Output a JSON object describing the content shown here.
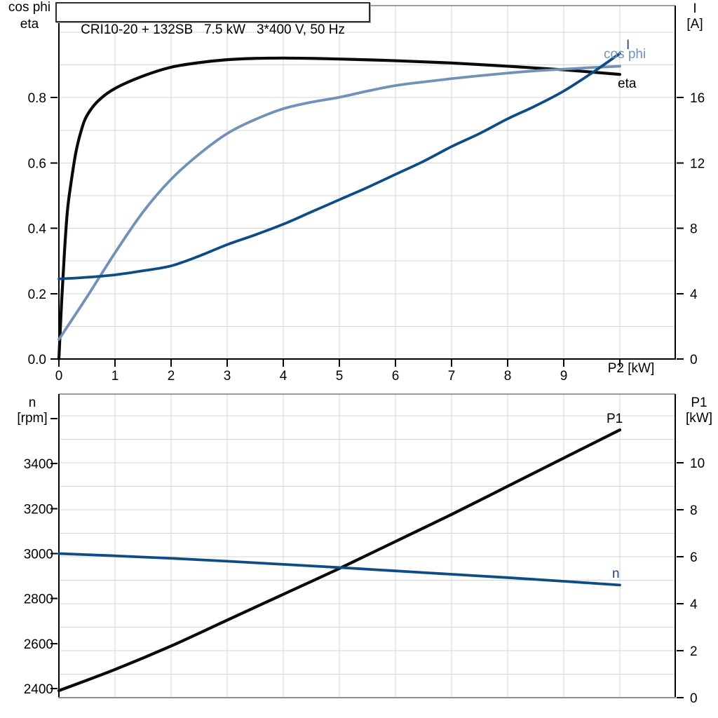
{
  "title_box": "CRI10-20 + 132SB   7.5 kW   3*400 V, 50 Hz",
  "colors": {
    "black": "#0a0a0a",
    "light_blue": "#7191b8",
    "dark_blue": "#0e4c85",
    "grid": "#d5d5d5",
    "axis": "#000000",
    "border_top": "#3c3c3c",
    "border_gray": "#8f8f8f"
  },
  "chart_data": [
    {
      "type": "line",
      "title": "CRI10-20 + 132SB  7.5 kW  3*400 V, 50 Hz",
      "x_label": "P2 [kW]",
      "x_range": [
        0,
        11
      ],
      "x_ticks": {
        "values": [
          0,
          1,
          2,
          3,
          4,
          5,
          6,
          7,
          8,
          9,
          10
        ],
        "labels": [
          "0",
          "1",
          "2",
          "3",
          "4",
          "5",
          "6",
          "7",
          "8",
          "9",
          ""
        ]
      },
      "x_gridlines": [
        1,
        2,
        3,
        4,
        5,
        6,
        7,
        8,
        9,
        10
      ],
      "left_axis_title": [
        "cos phi",
        "eta"
      ],
      "left_range": [
        0,
        1.082
      ],
      "left_ticks": {
        "values": [
          0.0,
          0.2,
          0.4,
          0.6,
          0.8
        ],
        "labels": [
          "0.0",
          "0.2",
          "0.4",
          "0.6",
          "0.8"
        ]
      },
      "right_axis_title": [
        "I",
        "[A]"
      ],
      "right_range": [
        0,
        21.6
      ],
      "right_ticks": {
        "values": [
          0,
          4,
          8,
          12,
          16
        ],
        "labels": [
          "0",
          "4",
          "8",
          "12",
          "16"
        ]
      },
      "h_gridlines": {
        "axis": "left",
        "values": [
          0.1,
          0.2,
          0.3,
          0.4,
          0.5,
          0.6,
          0.7,
          0.8,
          0.9,
          1.0
        ]
      },
      "curve_labels": {
        "eta": "eta",
        "cos_phi": "cos phi",
        "current": "I"
      },
      "series": [
        {
          "name": "eta",
          "axis": "left",
          "color": "black",
          "points": [
            [
              0,
              0
            ],
            [
              0.05,
              0.18
            ],
            [
              0.1,
              0.33
            ],
            [
              0.15,
              0.45
            ],
            [
              0.2,
              0.52
            ],
            [
              0.3,
              0.63
            ],
            [
              0.4,
              0.7
            ],
            [
              0.5,
              0.745
            ],
            [
              0.7,
              0.79
            ],
            [
              1,
              0.828
            ],
            [
              1.5,
              0.866
            ],
            [
              2,
              0.893
            ],
            [
              2.5,
              0.907
            ],
            [
              3,
              0.916
            ],
            [
              3.5,
              0.92
            ],
            [
              4,
              0.921
            ],
            [
              4.5,
              0.92
            ],
            [
              5,
              0.918
            ],
            [
              6,
              0.913
            ],
            [
              7,
              0.906
            ],
            [
              8,
              0.896
            ],
            [
              9,
              0.885
            ],
            [
              10,
              0.871
            ]
          ]
        },
        {
          "name": "cos phi",
          "axis": "left",
          "color": "light_blue",
          "points": [
            [
              0,
              0.06
            ],
            [
              0.5,
              0.19
            ],
            [
              1,
              0.325
            ],
            [
              1.5,
              0.45
            ],
            [
              2,
              0.55
            ],
            [
              2.5,
              0.627
            ],
            [
              3,
              0.69
            ],
            [
              3.5,
              0.733
            ],
            [
              4,
              0.766
            ],
            [
              4.5,
              0.786
            ],
            [
              5,
              0.801
            ],
            [
              5.5,
              0.82
            ],
            [
              6,
              0.837
            ],
            [
              6.5,
              0.848
            ],
            [
              7,
              0.858
            ],
            [
              7.5,
              0.867
            ],
            [
              8,
              0.875
            ],
            [
              8.5,
              0.882
            ],
            [
              9,
              0.887
            ],
            [
              9.5,
              0.892
            ],
            [
              10,
              0.896
            ]
          ]
        },
        {
          "name": "I",
          "axis": "right",
          "color": "dark_blue",
          "points": [
            [
              0,
              4.9
            ],
            [
              0.5,
              5.0
            ],
            [
              1,
              5.15
            ],
            [
              1.5,
              5.4
            ],
            [
              2,
              5.7
            ],
            [
              2.5,
              6.3
            ],
            [
              3,
              7.0
            ],
            [
              3.5,
              7.6
            ],
            [
              4,
              8.25
            ],
            [
              4.5,
              9.0
            ],
            [
              5,
              9.75
            ],
            [
              5.5,
              10.5
            ],
            [
              6,
              11.3
            ],
            [
              6.5,
              12.1
            ],
            [
              7,
              13.0
            ],
            [
              7.5,
              13.8
            ],
            [
              8,
              14.7
            ],
            [
              8.5,
              15.5
            ],
            [
              9,
              16.4
            ],
            [
              9.5,
              17.5
            ],
            [
              10,
              18.7
            ]
          ]
        }
      ]
    },
    {
      "type": "line",
      "x_range": [
        0,
        11
      ],
      "x_gridlines": [
        1,
        2,
        3,
        4,
        5,
        6,
        7,
        8,
        9,
        10
      ],
      "left_axis_title": [
        "n",
        "[rpm]"
      ],
      "left_range": [
        2360,
        3709
      ],
      "left_ticks": {
        "values": [
          3400,
          3200,
          3000,
          2800,
          2600,
          2400
        ],
        "labels": [
          "3400",
          "3200",
          "3000",
          "2800",
          "2600",
          "2400"
        ],
        "extra_marks": [
          3600
        ]
      },
      "right_axis_title": [
        "P1",
        "[kW]"
      ],
      "right_range": [
        0,
        12.9
      ],
      "right_ticks": {
        "values": [
          0,
          2,
          4,
          6,
          8,
          10
        ],
        "labels": [
          "0",
          "2",
          "4",
          "6",
          "8",
          "10"
        ]
      },
      "h_gridlines": {
        "axis": "right",
        "values": [
          1,
          2,
          3,
          4,
          5,
          6,
          7,
          8,
          9,
          10,
          11,
          12
        ]
      },
      "curve_labels": {
        "p1": "P1",
        "n": "n"
      },
      "series": [
        {
          "name": "P1",
          "axis": "right",
          "color": "black",
          "points": [
            [
              0,
              0.3
            ],
            [
              1,
              1.2
            ],
            [
              2,
              2.2
            ],
            [
              3,
              3.3
            ],
            [
              4,
              4.4
            ],
            [
              5,
              5.5
            ],
            [
              6,
              6.65
            ],
            [
              7,
              7.8
            ],
            [
              8,
              9.0
            ],
            [
              9,
              10.2
            ],
            [
              10,
              11.4
            ]
          ]
        },
        {
          "name": "n",
          "axis": "left",
          "color": "dark_blue",
          "points": [
            [
              0,
              3000
            ],
            [
              1,
              2990
            ],
            [
              2,
              2979
            ],
            [
              3,
              2966
            ],
            [
              4,
              2952
            ],
            [
              5,
              2938
            ],
            [
              6,
              2923
            ],
            [
              7,
              2908
            ],
            [
              8,
              2893
            ],
            [
              9,
              2877
            ],
            [
              10,
              2860
            ]
          ]
        }
      ]
    }
  ]
}
